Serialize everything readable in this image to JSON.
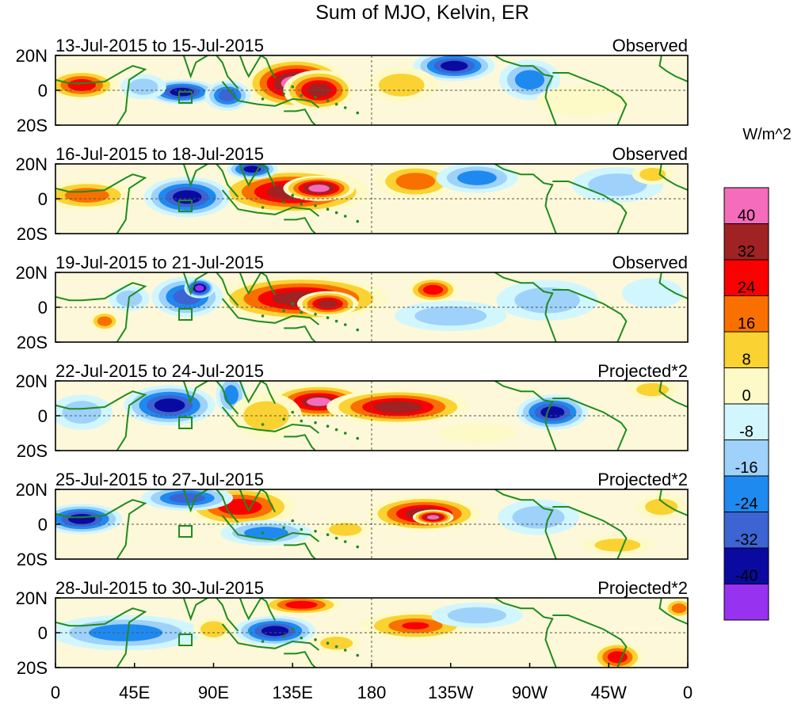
{
  "chart_data": {
    "type": "heatmap",
    "title": "Sum of MJO, Kelvin, ER",
    "colorbar": {
      "units_label": "W/m^2",
      "tick_labels": [
        "40",
        "32",
        "24",
        "16",
        "8",
        "0",
        "-8",
        "-16",
        "-24",
        "-32",
        "-40"
      ],
      "colors": [
        "#f46cba",
        "#a02222",
        "#fa0000",
        "#fa7000",
        "#fad232",
        "#fefac8",
        "#d2f6fe",
        "#9ed2fa",
        "#1e8af0",
        "#3c64d2",
        "#0a0aa0",
        "#9632f0"
      ]
    },
    "x_axis": {
      "tick_labels": [
        "0",
        "45E",
        "90E",
        "135E",
        "180",
        "135W",
        "90W",
        "45W",
        "0"
      ],
      "range_deg_east": [
        0,
        360
      ]
    },
    "y_axis": {
      "tick_labels": [
        "20N",
        "0",
        "20S"
      ],
      "range_deg": [
        -20,
        20
      ]
    },
    "panels": [
      {
        "date_range": "13-Jul-2015 to 15-Jul-2015",
        "status": "Observed",
        "anomalies": [
          {
            "lon": 137,
            "lat": 4,
            "rlon": 20,
            "rlat": 10,
            "value": 44
          },
          {
            "lon": 150,
            "lat": 0,
            "rlon": 14,
            "rlat": 8,
            "value": 36
          },
          {
            "lon": 15,
            "lat": 3,
            "rlon": 14,
            "rlat": 6,
            "value": 28
          },
          {
            "lon": 72,
            "lat": -1,
            "rlon": 14,
            "rlat": 5,
            "value": -38
          },
          {
            "lon": 98,
            "lat": -3,
            "rlon": 9,
            "rlat": 6,
            "value": -30
          },
          {
            "lon": 50,
            "lat": 2,
            "rlon": 9,
            "rlat": 5,
            "value": -14
          },
          {
            "lon": 227,
            "lat": 14,
            "rlon": 16,
            "rlat": 6,
            "value": -34
          },
          {
            "lon": 270,
            "lat": 6,
            "rlon": 12,
            "rlat": 8,
            "value": -18
          },
          {
            "lon": 197,
            "lat": 3,
            "rlon": 14,
            "rlat": 7,
            "value": 10
          },
          {
            "lon": 300,
            "lat": -6,
            "rlon": 18,
            "rlat": 6,
            "value": 6
          }
        ]
      },
      {
        "date_range": "16-Jul-2015 to 18-Jul-2015",
        "status": "Observed",
        "anomalies": [
          {
            "lon": 135,
            "lat": 4,
            "rlon": 30,
            "rlat": 9,
            "value": 38
          },
          {
            "lon": 150,
            "lat": 6,
            "rlon": 14,
            "rlat": 5,
            "value": 44
          },
          {
            "lon": 18,
            "lat": 2,
            "rlon": 18,
            "rlat": 6,
            "value": 22
          },
          {
            "lon": 75,
            "lat": 1,
            "rlon": 17,
            "rlat": 8,
            "value": -38
          },
          {
            "lon": 112,
            "lat": 17,
            "rlon": 10,
            "rlat": 4,
            "value": -34
          },
          {
            "lon": 205,
            "lat": 10,
            "rlon": 16,
            "rlat": 7,
            "value": 18
          },
          {
            "lon": 240,
            "lat": 12,
            "rlon": 16,
            "rlat": 6,
            "value": -18
          },
          {
            "lon": 320,
            "lat": 8,
            "rlon": 18,
            "rlat": 7,
            "value": -14
          },
          {
            "lon": 340,
            "lat": 14,
            "rlon": 8,
            "rlat": 4,
            "value": 10
          }
        ]
      },
      {
        "date_range": "19-Jul-2015 to 21-Jul-2015",
        "status": "Observed",
        "anomalies": [
          {
            "lon": 140,
            "lat": 5,
            "rlon": 34,
            "rlat": 9,
            "value": 34
          },
          {
            "lon": 155,
            "lat": 2,
            "rlon": 12,
            "rlat": 5,
            "value": 38
          },
          {
            "lon": 75,
            "lat": 6,
            "rlon": 14,
            "rlat": 8,
            "value": -28
          },
          {
            "lon": 82,
            "lat": 11,
            "rlon": 6,
            "rlat": 4,
            "value": -42
          },
          {
            "lon": 42,
            "lat": 5,
            "rlon": 8,
            "rlat": 5,
            "value": -14
          },
          {
            "lon": 215,
            "lat": 10,
            "rlon": 10,
            "rlat": 5,
            "value": 30
          },
          {
            "lon": 225,
            "lat": -5,
            "rlon": 22,
            "rlat": 6,
            "value": -12
          },
          {
            "lon": 280,
            "lat": 4,
            "rlon": 20,
            "rlat": 8,
            "value": -14
          },
          {
            "lon": 28,
            "lat": -8,
            "rlon": 6,
            "rlat": 4,
            "value": 18
          },
          {
            "lon": 340,
            "lat": 8,
            "rlon": 12,
            "rlat": 6,
            "value": -8
          }
        ]
      },
      {
        "date_range": "22-Jul-2015 to 24-Jul-2015",
        "status": "Projected*2",
        "anomalies": [
          {
            "lon": 150,
            "lat": 8,
            "rlon": 20,
            "rlat": 7,
            "value": 40
          },
          {
            "lon": 195,
            "lat": 5,
            "rlon": 28,
            "rlat": 7,
            "value": 34
          },
          {
            "lon": 65,
            "lat": 6,
            "rlon": 18,
            "rlat": 8,
            "value": -38
          },
          {
            "lon": 15,
            "lat": 2,
            "rlon": 12,
            "rlat": 7,
            "value": -14
          },
          {
            "lon": 100,
            "lat": 12,
            "rlon": 6,
            "rlat": 8,
            "value": -20
          },
          {
            "lon": 120,
            "lat": 0,
            "rlon": 14,
            "rlat": 9,
            "value": 12
          },
          {
            "lon": 283,
            "lat": 2,
            "rlon": 14,
            "rlat": 7,
            "value": -36
          },
          {
            "lon": 340,
            "lat": 15,
            "rlon": 10,
            "rlat": 4,
            "value": 14
          },
          {
            "lon": 240,
            "lat": -10,
            "rlon": 16,
            "rlat": 4,
            "value": 6
          }
        ]
      },
      {
        "date_range": "25-Jul-2015 to 27-Jul-2015",
        "status": "Projected*2",
        "anomalies": [
          {
            "lon": 105,
            "lat": 10,
            "rlon": 22,
            "rlat": 8,
            "value": 30
          },
          {
            "lon": 210,
            "lat": 6,
            "rlon": 22,
            "rlat": 7,
            "value": 34
          },
          {
            "lon": 215,
            "lat": 4,
            "rlon": 8,
            "rlat": 3,
            "value": 42
          },
          {
            "lon": 15,
            "lat": 3,
            "rlon": 16,
            "rlat": 6,
            "value": -34
          },
          {
            "lon": 75,
            "lat": 15,
            "rlon": 18,
            "rlat": 5,
            "value": -30
          },
          {
            "lon": 120,
            "lat": -5,
            "rlon": 18,
            "rlat": 5,
            "value": -24
          },
          {
            "lon": 165,
            "lat": -3,
            "rlon": 10,
            "rlat": 4,
            "value": 10
          },
          {
            "lon": 275,
            "lat": 4,
            "rlon": 16,
            "rlat": 7,
            "value": -10
          },
          {
            "lon": 320,
            "lat": -12,
            "rlon": 14,
            "rlat": 4,
            "value": 14
          },
          {
            "lon": 345,
            "lat": 10,
            "rlon": 10,
            "rlat": 5,
            "value": 12
          }
        ]
      },
      {
        "date_range": "28-Jul-2015 to 30-Jul-2015",
        "status": "Projected*2",
        "anomalies": [
          {
            "lon": 205,
            "lat": 4,
            "rlon": 22,
            "rlat": 6,
            "value": 24
          },
          {
            "lon": 140,
            "lat": 16,
            "rlon": 16,
            "rlat": 4,
            "value": 26
          },
          {
            "lon": 125,
            "lat": 1,
            "rlon": 16,
            "rlat": 6,
            "value": -36
          },
          {
            "lon": 40,
            "lat": 0,
            "rlon": 30,
            "rlat": 7,
            "value": -18
          },
          {
            "lon": 90,
            "lat": 2,
            "rlon": 8,
            "rlat": 5,
            "value": 12
          },
          {
            "lon": 320,
            "lat": -14,
            "rlon": 10,
            "rlat": 6,
            "value": 30
          },
          {
            "lon": 160,
            "lat": -6,
            "rlon": 10,
            "rlat": 4,
            "value": 14
          },
          {
            "lon": 355,
            "lat": 14,
            "rlon": 6,
            "rlat": 4,
            "value": 20
          },
          {
            "lon": 240,
            "lat": 10,
            "rlon": 18,
            "rlat": 5,
            "value": -10
          }
        ]
      }
    ]
  }
}
